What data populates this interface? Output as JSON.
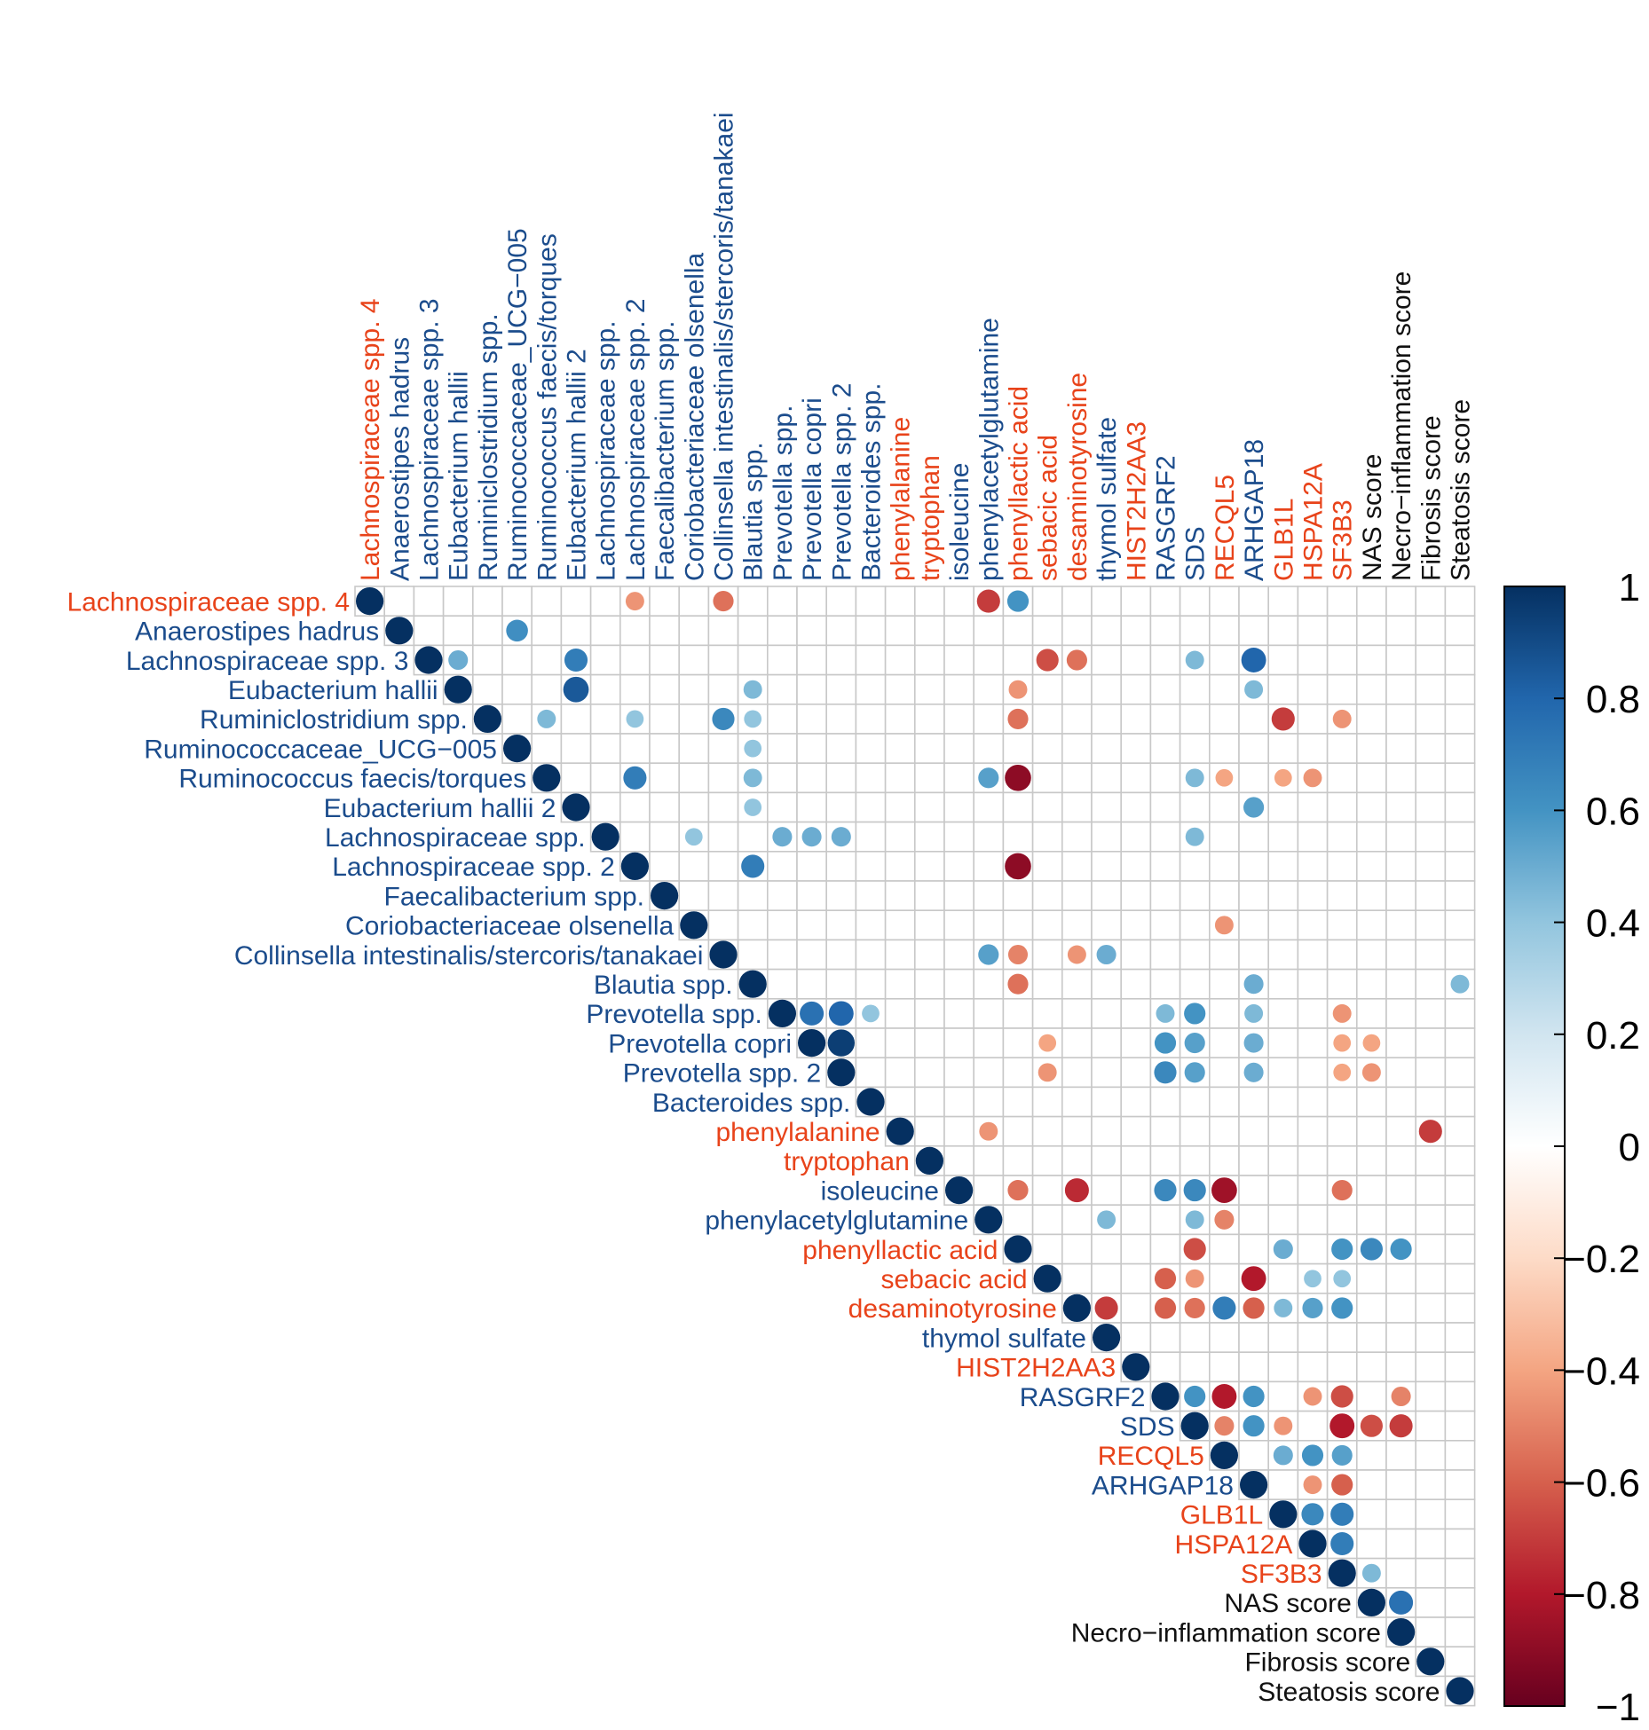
{
  "chart_data": {
    "type": "heatmap",
    "subtype": "correlation-upper-triangle-circles",
    "labels": [
      "Lachnospiraceae spp. 4",
      "Anaerostipes hadrus",
      "Lachnospiraceae spp. 3",
      "Eubacterium hallii",
      "Ruminiclostridium spp.",
      "Ruminococcaceae_UCG−005",
      "Ruminococcus faecis/torques",
      "Eubacterium hallii 2",
      "Lachnospiraceae spp.",
      "Lachnospiraceae spp. 2",
      "Faecalibacterium spp.",
      "Coriobacteriaceae olsenella",
      "Collinsella intestinalis/stercoris/tanakaei",
      "Blautia spp.",
      "Prevotella spp.",
      "Prevotella copri",
      "Prevotella spp. 2",
      "Bacteroides spp.",
      "phenylalanine",
      "tryptophan",
      "isoleucine",
      "phenylacetylglutamine",
      "phenyllactic acid",
      "sebacic acid",
      "desaminotyrosine",
      "thymol sulfate",
      "HIST2H2AA3",
      "RASGRF2",
      "SDS",
      "RECQL5",
      "ARHGAP18",
      "GLB1L",
      "HSPA12A",
      "SF3B3",
      "NAS score",
      "Necro−inflammation score",
      "Fibrosis score",
      "Steatosis score"
    ],
    "label_groups": [
      "red",
      "blue",
      "blue",
      "blue",
      "blue",
      "blue",
      "blue",
      "blue",
      "blue",
      "blue",
      "blue",
      "blue",
      "blue",
      "blue",
      "blue",
      "blue",
      "blue",
      "blue",
      "red",
      "red",
      "blue",
      "blue",
      "red",
      "red",
      "red",
      "blue",
      "red",
      "blue",
      "blue",
      "red",
      "blue",
      "red",
      "red",
      "red",
      "black",
      "black",
      "black",
      "black"
    ],
    "group_colors": {
      "red": "#E8431A",
      "blue": "#1B4C8C",
      "black": "#111111"
    },
    "cells": [
      [
        0,
        9,
        -0.45
      ],
      [
        0,
        12,
        -0.55
      ],
      [
        0,
        21,
        -0.7
      ],
      [
        0,
        22,
        0.6
      ],
      [
        1,
        5,
        0.62
      ],
      [
        2,
        3,
        0.5
      ],
      [
        2,
        7,
        0.7
      ],
      [
        2,
        23,
        -0.65
      ],
      [
        2,
        24,
        -0.55
      ],
      [
        2,
        28,
        0.45
      ],
      [
        2,
        30,
        0.8
      ],
      [
        3,
        7,
        0.85
      ],
      [
        3,
        13,
        0.45
      ],
      [
        3,
        22,
        -0.45
      ],
      [
        3,
        30,
        0.45
      ],
      [
        4,
        6,
        0.45
      ],
      [
        4,
        9,
        0.4
      ],
      [
        4,
        12,
        0.65
      ],
      [
        4,
        13,
        0.4
      ],
      [
        4,
        22,
        -0.55
      ],
      [
        4,
        31,
        -0.7
      ],
      [
        4,
        33,
        -0.45
      ],
      [
        5,
        13,
        0.4
      ],
      [
        6,
        9,
        0.7
      ],
      [
        6,
        13,
        0.45
      ],
      [
        6,
        21,
        0.55
      ],
      [
        6,
        22,
        -0.9
      ],
      [
        6,
        28,
        0.45
      ],
      [
        6,
        29,
        -0.4
      ],
      [
        6,
        31,
        -0.4
      ],
      [
        6,
        32,
        -0.45
      ],
      [
        7,
        13,
        0.4
      ],
      [
        7,
        30,
        0.55
      ],
      [
        8,
        11,
        0.4
      ],
      [
        8,
        14,
        0.5
      ],
      [
        8,
        15,
        0.5
      ],
      [
        8,
        16,
        0.5
      ],
      [
        8,
        28,
        0.45
      ],
      [
        9,
        13,
        0.7
      ],
      [
        9,
        22,
        -0.9
      ],
      [
        11,
        29,
        -0.45
      ],
      [
        12,
        21,
        0.55
      ],
      [
        12,
        22,
        -0.5
      ],
      [
        12,
        24,
        -0.45
      ],
      [
        12,
        25,
        0.5
      ],
      [
        13,
        22,
        -0.55
      ],
      [
        13,
        30,
        0.5
      ],
      [
        13,
        37,
        0.45
      ],
      [
        14,
        15,
        0.75
      ],
      [
        14,
        16,
        0.8
      ],
      [
        14,
        17,
        0.4
      ],
      [
        14,
        27,
        0.45
      ],
      [
        14,
        28,
        0.6
      ],
      [
        14,
        30,
        0.45
      ],
      [
        14,
        33,
        -0.45
      ],
      [
        15,
        16,
        0.95
      ],
      [
        15,
        23,
        -0.4
      ],
      [
        15,
        27,
        0.6
      ],
      [
        15,
        28,
        0.55
      ],
      [
        15,
        30,
        0.5
      ],
      [
        15,
        33,
        -0.4
      ],
      [
        15,
        34,
        -0.4
      ],
      [
        16,
        23,
        -0.45
      ],
      [
        16,
        27,
        0.65
      ],
      [
        16,
        28,
        0.55
      ],
      [
        16,
        30,
        0.5
      ],
      [
        16,
        33,
        -0.4
      ],
      [
        16,
        34,
        -0.45
      ],
      [
        18,
        21,
        -0.45
      ],
      [
        18,
        36,
        -0.7
      ],
      [
        20,
        22,
        -0.55
      ],
      [
        20,
        24,
        -0.75
      ],
      [
        20,
        27,
        0.65
      ],
      [
        20,
        28,
        0.65
      ],
      [
        20,
        29,
        -0.85
      ],
      [
        20,
        33,
        -0.55
      ],
      [
        21,
        25,
        0.45
      ],
      [
        21,
        28,
        0.45
      ],
      [
        21,
        29,
        -0.5
      ],
      [
        22,
        28,
        -0.65
      ],
      [
        22,
        31,
        0.5
      ],
      [
        22,
        33,
        0.6
      ],
      [
        22,
        34,
        0.65
      ],
      [
        22,
        35,
        0.6
      ],
      [
        23,
        27,
        -0.6
      ],
      [
        23,
        28,
        -0.45
      ],
      [
        23,
        30,
        -0.8
      ],
      [
        23,
        32,
        0.4
      ],
      [
        23,
        33,
        0.4
      ],
      [
        24,
        25,
        -0.7
      ],
      [
        24,
        27,
        -0.6
      ],
      [
        24,
        28,
        -0.55
      ],
      [
        24,
        29,
        0.7
      ],
      [
        24,
        30,
        -0.6
      ],
      [
        24,
        31,
        0.45
      ],
      [
        24,
        32,
        0.55
      ],
      [
        24,
        33,
        0.6
      ],
      [
        27,
        28,
        0.6
      ],
      [
        27,
        29,
        -0.8
      ],
      [
        27,
        30,
        0.6
      ],
      [
        27,
        32,
        -0.45
      ],
      [
        27,
        33,
        -0.65
      ],
      [
        27,
        35,
        -0.5
      ],
      [
        28,
        29,
        -0.5
      ],
      [
        28,
        30,
        0.6
      ],
      [
        28,
        31,
        -0.45
      ],
      [
        28,
        33,
        -0.8
      ],
      [
        28,
        34,
        -0.65
      ],
      [
        28,
        35,
        -0.7
      ],
      [
        29,
        31,
        0.5
      ],
      [
        29,
        32,
        0.6
      ],
      [
        29,
        33,
        0.55
      ],
      [
        30,
        32,
        -0.45
      ],
      [
        30,
        33,
        -0.6
      ],
      [
        31,
        32,
        0.65
      ],
      [
        31,
        33,
        0.7
      ],
      [
        32,
        33,
        0.7
      ],
      [
        33,
        34,
        0.45
      ],
      [
        34,
        35,
        0.75
      ]
    ],
    "color_scale": {
      "range": [
        -1,
        1
      ],
      "stops": [
        "#67001F",
        "#B2182B",
        "#D6604D",
        "#F4A582",
        "#FDDBC7",
        "#FFFFFF",
        "#D1E5F0",
        "#92C5DE",
        "#4393C3",
        "#2166AC",
        "#053061"
      ]
    },
    "colorbar_ticks": [
      "1",
      "0.8",
      "0.6",
      "0.4",
      "0.2",
      "0",
      "−0.2",
      "−0.4",
      "−0.6",
      "−0.8",
      "−1"
    ],
    "grid": true,
    "legend": "colorbar-right"
  }
}
